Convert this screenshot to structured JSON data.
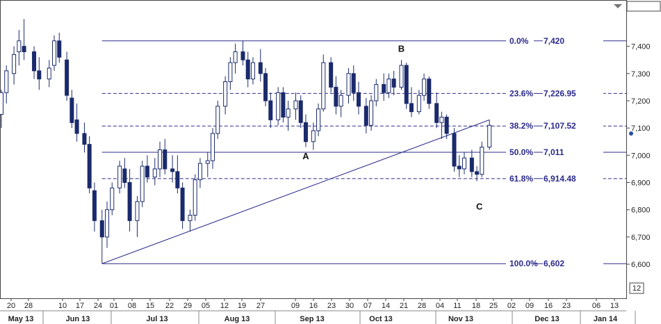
{
  "chart_data": {
    "type": "candlestick",
    "title": "",
    "xlabel": "",
    "ylabel": "",
    "ylim": [
      6475,
      7570
    ],
    "y_ticks": [
      6600,
      6700,
      6800,
      6900,
      7000,
      7100,
      7200,
      7300,
      7400
    ],
    "y_tick_labels": [
      "6,600",
      "6,700",
      "6,800",
      "6,900",
      "7,000",
      "7,100",
      "7,200",
      "7,300",
      "7,400"
    ],
    "x_day_ticks": [
      "20",
      "28",
      "10",
      "17",
      "24",
      "01",
      "08",
      "15",
      "22",
      "29",
      "05",
      "12",
      "19",
      "27",
      "09",
      "16",
      "23",
      "30",
      "07",
      "14",
      "21",
      "28",
      "04",
      "11",
      "18",
      "25",
      "02",
      "09",
      "16",
      "23",
      "06",
      "13"
    ],
    "x_month_labels": [
      "May 13",
      "Jun 13",
      "Jul 13",
      "Aug 13",
      "Sep 13",
      "Oct 13",
      "Nov 13",
      "Dec 13",
      "Jan 14"
    ],
    "box_label": "12",
    "fib_levels": [
      {
        "label": "0.0%",
        "value_text": "7,420",
        "value": 7420,
        "style": "solid"
      },
      {
        "label": "23.6%",
        "value_text": "7,226.95",
        "value": 7226.95,
        "style": "dashed"
      },
      {
        "label": "38.2%",
        "value_text": "7,107.52",
        "value": 7107.52,
        "style": "dashed"
      },
      {
        "label": "50.0%",
        "value_text": "7,011",
        "value": 7011,
        "style": "solid"
      },
      {
        "label": "61.8%",
        "value_text": "6,914.48",
        "value": 6914.48,
        "style": "dashed"
      },
      {
        "label": "100.0%",
        "value_text": "6,602",
        "value": 6602,
        "style": "solid"
      }
    ],
    "wave_labels": [
      {
        "text": "A",
        "date": "2013-09-13",
        "value": 6985
      },
      {
        "text": "B",
        "date": "2013-10-21",
        "value": 7380
      },
      {
        "text": "C",
        "date": "2013-11-21",
        "value": 6800
      }
    ],
    "trendline": {
      "start": [
        "2013-06-24",
        6602
      ],
      "end": [
        "2013-11-25",
        7130
      ]
    },
    "last_marker": 7080,
    "series": [
      {
        "date": "2013-05-15",
        "open": 7150,
        "high": 7240,
        "low": 7100,
        "close": 7230
      },
      {
        "date": "2013-05-17",
        "open": 7230,
        "high": 7330,
        "low": 7190,
        "close": 7310
      },
      {
        "date": "2013-05-20",
        "open": 7300,
        "high": 7400,
        "low": 7260,
        "close": 7370
      },
      {
        "date": "2013-05-22",
        "open": 7380,
        "high": 7460,
        "low": 7330,
        "close": 7420
      },
      {
        "date": "2013-05-24",
        "open": 7400,
        "high": 7500,
        "low": 7350,
        "close": 7380
      },
      {
        "date": "2013-05-28",
        "open": 7380,
        "high": 7400,
        "low": 7280,
        "close": 7310
      },
      {
        "date": "2013-05-30",
        "open": 7310,
        "high": 7360,
        "low": 7240,
        "close": 7280
      },
      {
        "date": "2013-06-03",
        "open": 7280,
        "high": 7350,
        "low": 7250,
        "close": 7320
      },
      {
        "date": "2013-06-05",
        "open": 7330,
        "high": 7440,
        "low": 7310,
        "close": 7420
      },
      {
        "date": "2013-06-07",
        "open": 7420,
        "high": 7450,
        "low": 7340,
        "close": 7360
      },
      {
        "date": "2013-06-10",
        "open": 7350,
        "high": 7380,
        "low": 7200,
        "close": 7220
      },
      {
        "date": "2013-06-12",
        "open": 7210,
        "high": 7240,
        "low": 7100,
        "close": 7120
      },
      {
        "date": "2013-06-14",
        "open": 7130,
        "high": 7190,
        "low": 7050,
        "close": 7080
      },
      {
        "date": "2013-06-17",
        "open": 7080,
        "high": 7120,
        "low": 7010,
        "close": 7040
      },
      {
        "date": "2013-06-19",
        "open": 7040,
        "high": 7070,
        "low": 6860,
        "close": 6880
      },
      {
        "date": "2013-06-21",
        "open": 6870,
        "high": 6900,
        "low": 6720,
        "close": 6760
      },
      {
        "date": "2013-06-24",
        "open": 6760,
        "high": 6800,
        "low": 6602,
        "close": 6700
      },
      {
        "date": "2013-06-26",
        "open": 6700,
        "high": 6830,
        "low": 6660,
        "close": 6800
      },
      {
        "date": "2013-06-28",
        "open": 6800,
        "high": 6900,
        "low": 6780,
        "close": 6880
      },
      {
        "date": "2013-07-01",
        "open": 6880,
        "high": 6980,
        "low": 6860,
        "close": 6960
      },
      {
        "date": "2013-07-03",
        "open": 6950,
        "high": 6990,
        "low": 6880,
        "close": 6900
      },
      {
        "date": "2013-07-05",
        "open": 6900,
        "high": 6950,
        "low": 6720,
        "close": 6760
      },
      {
        "date": "2013-07-08",
        "open": 6760,
        "high": 6850,
        "low": 6700,
        "close": 6830
      },
      {
        "date": "2013-07-10",
        "open": 6830,
        "high": 6980,
        "low": 6810,
        "close": 6960
      },
      {
        "date": "2013-07-12",
        "open": 6960,
        "high": 7000,
        "low": 6900,
        "close": 6920
      },
      {
        "date": "2013-07-15",
        "open": 6920,
        "high": 6990,
        "low": 6890,
        "close": 6950
      },
      {
        "date": "2013-07-17",
        "open": 6950,
        "high": 7050,
        "low": 6920,
        "close": 7020
      },
      {
        "date": "2013-07-19",
        "open": 7020,
        "high": 7060,
        "low": 6930,
        "close": 6950
      },
      {
        "date": "2013-07-22",
        "open": 6950,
        "high": 7000,
        "low": 6900,
        "close": 6940
      },
      {
        "date": "2013-07-24",
        "open": 6940,
        "high": 7000,
        "low": 6860,
        "close": 6880
      },
      {
        "date": "2013-07-26",
        "open": 6880,
        "high": 6900,
        "low": 6730,
        "close": 6760
      },
      {
        "date": "2013-07-29",
        "open": 6760,
        "high": 6800,
        "low": 6720,
        "close": 6780
      },
      {
        "date": "2013-07-31",
        "open": 6780,
        "high": 6930,
        "low": 6760,
        "close": 6910
      },
      {
        "date": "2013-08-02",
        "open": 6910,
        "high": 6990,
        "low": 6880,
        "close": 6970
      },
      {
        "date": "2013-08-05",
        "open": 6970,
        "high": 7010,
        "low": 6920,
        "close": 6980
      },
      {
        "date": "2013-08-07",
        "open": 6980,
        "high": 7100,
        "low": 6950,
        "close": 7080
      },
      {
        "date": "2013-08-09",
        "open": 7080,
        "high": 7200,
        "low": 7060,
        "close": 7180
      },
      {
        "date": "2013-08-12",
        "open": 7180,
        "high": 7290,
        "low": 7150,
        "close": 7270
      },
      {
        "date": "2013-08-14",
        "open": 7270,
        "high": 7360,
        "low": 7240,
        "close": 7340
      },
      {
        "date": "2013-08-16",
        "open": 7340,
        "high": 7410,
        "low": 7300,
        "close": 7380
      },
      {
        "date": "2013-08-19",
        "open": 7380,
        "high": 7420,
        "low": 7330,
        "close": 7350
      },
      {
        "date": "2013-08-21",
        "open": 7350,
        "high": 7380,
        "low": 7250,
        "close": 7280
      },
      {
        "date": "2013-08-23",
        "open": 7280,
        "high": 7360,
        "low": 7260,
        "close": 7340
      },
      {
        "date": "2013-08-26",
        "open": 7340,
        "high": 7390,
        "low": 7270,
        "close": 7300
      },
      {
        "date": "2013-08-28",
        "open": 7300,
        "high": 7320,
        "low": 7180,
        "close": 7200
      },
      {
        "date": "2013-08-30",
        "open": 7200,
        "high": 7230,
        "low": 7100,
        "close": 7130
      },
      {
        "date": "2013-09-02",
        "open": 7130,
        "high": 7250,
        "low": 7110,
        "close": 7230
      },
      {
        "date": "2013-09-04",
        "open": 7230,
        "high": 7250,
        "low": 7120,
        "close": 7140
      },
      {
        "date": "2013-09-06",
        "open": 7140,
        "high": 7200,
        "low": 7090,
        "close": 7170
      },
      {
        "date": "2013-09-09",
        "open": 7170,
        "high": 7230,
        "low": 7130,
        "close": 7200
      },
      {
        "date": "2013-09-11",
        "open": 7200,
        "high": 7220,
        "low": 7100,
        "close": 7120
      },
      {
        "date": "2013-09-13",
        "open": 7120,
        "high": 7150,
        "low": 7030,
        "close": 7050
      },
      {
        "date": "2013-09-16",
        "open": 7050,
        "high": 7120,
        "low": 7020,
        "close": 7090
      },
      {
        "date": "2013-09-18",
        "open": 7090,
        "high": 7190,
        "low": 7070,
        "close": 7170
      },
      {
        "date": "2013-09-20",
        "open": 7170,
        "high": 7370,
        "low": 7160,
        "close": 7340
      },
      {
        "date": "2013-09-23",
        "open": 7340,
        "high": 7360,
        "low": 7230,
        "close": 7250
      },
      {
        "date": "2013-09-25",
        "open": 7250,
        "high": 7290,
        "low": 7150,
        "close": 7180
      },
      {
        "date": "2013-09-27",
        "open": 7180,
        "high": 7240,
        "low": 7140,
        "close": 7220
      },
      {
        "date": "2013-09-30",
        "open": 7220,
        "high": 7320,
        "low": 7190,
        "close": 7300
      },
      {
        "date": "2013-10-02",
        "open": 7300,
        "high": 7330,
        "low": 7200,
        "close": 7230
      },
      {
        "date": "2013-10-04",
        "open": 7230,
        "high": 7270,
        "low": 7150,
        "close": 7180
      },
      {
        "date": "2013-10-07",
        "open": 7180,
        "high": 7210,
        "low": 7080,
        "close": 7110
      },
      {
        "date": "2013-10-09",
        "open": 7110,
        "high": 7220,
        "low": 7090,
        "close": 7200
      },
      {
        "date": "2013-10-11",
        "open": 7200,
        "high": 7280,
        "low": 7180,
        "close": 7260
      },
      {
        "date": "2013-10-14",
        "open": 7260,
        "high": 7300,
        "low": 7200,
        "close": 7230
      },
      {
        "date": "2013-10-16",
        "open": 7230,
        "high": 7300,
        "low": 7210,
        "close": 7280
      },
      {
        "date": "2013-10-18",
        "open": 7280,
        "high": 7310,
        "low": 7220,
        "close": 7250
      },
      {
        "date": "2013-10-21",
        "open": 7250,
        "high": 7350,
        "low": 7240,
        "close": 7330
      },
      {
        "date": "2013-10-23",
        "open": 7330,
        "high": 7340,
        "low": 7170,
        "close": 7190
      },
      {
        "date": "2013-10-25",
        "open": 7190,
        "high": 7250,
        "low": 7140,
        "close": 7160
      },
      {
        "date": "2013-10-28",
        "open": 7160,
        "high": 7240,
        "low": 7150,
        "close": 7220
      },
      {
        "date": "2013-10-30",
        "open": 7220,
        "high": 7300,
        "low": 7200,
        "close": 7280
      },
      {
        "date": "2013-11-01",
        "open": 7280,
        "high": 7290,
        "low": 7170,
        "close": 7190
      },
      {
        "date": "2013-11-04",
        "open": 7190,
        "high": 7230,
        "low": 7100,
        "close": 7120
      },
      {
        "date": "2013-11-06",
        "open": 7120,
        "high": 7160,
        "low": 7060,
        "close": 7140
      },
      {
        "date": "2013-11-08",
        "open": 7140,
        "high": 7150,
        "low": 7060,
        "close": 7080
      },
      {
        "date": "2013-11-11",
        "open": 7080,
        "high": 7100,
        "low": 6940,
        "close": 6960
      },
      {
        "date": "2013-11-13",
        "open": 6960,
        "high": 7000,
        "low": 6920,
        "close": 6950
      },
      {
        "date": "2013-11-15",
        "open": 6950,
        "high": 7010,
        "low": 6930,
        "close": 6990
      },
      {
        "date": "2013-11-18",
        "open": 6990,
        "high": 7020,
        "low": 6920,
        "close": 6940
      },
      {
        "date": "2013-11-20",
        "open": 6940,
        "high": 6960,
        "low": 6905,
        "close": 6930
      },
      {
        "date": "2013-11-22",
        "open": 6930,
        "high": 7050,
        "low": 6920,
        "close": 7030
      },
      {
        "date": "2013-11-25",
        "open": 7030,
        "high": 7130,
        "low": 7020,
        "close": 7110
      }
    ]
  }
}
